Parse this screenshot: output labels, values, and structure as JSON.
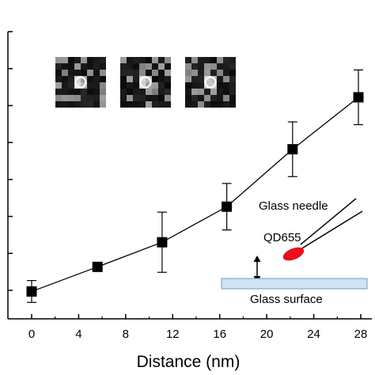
{
  "chart_data": {
    "type": "scatter",
    "title": "",
    "xlabel": "Distance (nm)",
    "ylabel": "",
    "xlim": [
      -1,
      28.5
    ],
    "ylim": [
      0,
      1.05
    ],
    "x_ticks": [
      0,
      4,
      8,
      12,
      16,
      20,
      24,
      28
    ],
    "x_tick_labels": [
      "0",
      "4",
      "8",
      "12",
      "16",
      "20",
      "24",
      "28"
    ],
    "y_ticks_count": 8,
    "grid": false,
    "line_style": "solid line with square markers and error bars",
    "series": [
      {
        "x": [
          0,
          5.6,
          11.1,
          16.6,
          22.2,
          27.8
        ],
        "y": [
          0.1,
          0.19,
          0.28,
          0.41,
          0.62,
          0.81
        ],
        "error": [
          0.04,
          0,
          0.11,
          0.085,
          0.1,
          0.1
        ]
      }
    ],
    "annotations": {
      "needle_label": "Glass needle",
      "qd_label": "QD655",
      "surface_label": "Glass surface"
    },
    "insets": [
      "microscope-image-1",
      "microscope-image-2",
      "microscope-image-3"
    ]
  },
  "colors": {
    "marker": "#000000",
    "qd": "#e8101a",
    "surface_fill": "#cfe3f3",
    "surface_stroke": "#7a9ab8"
  }
}
